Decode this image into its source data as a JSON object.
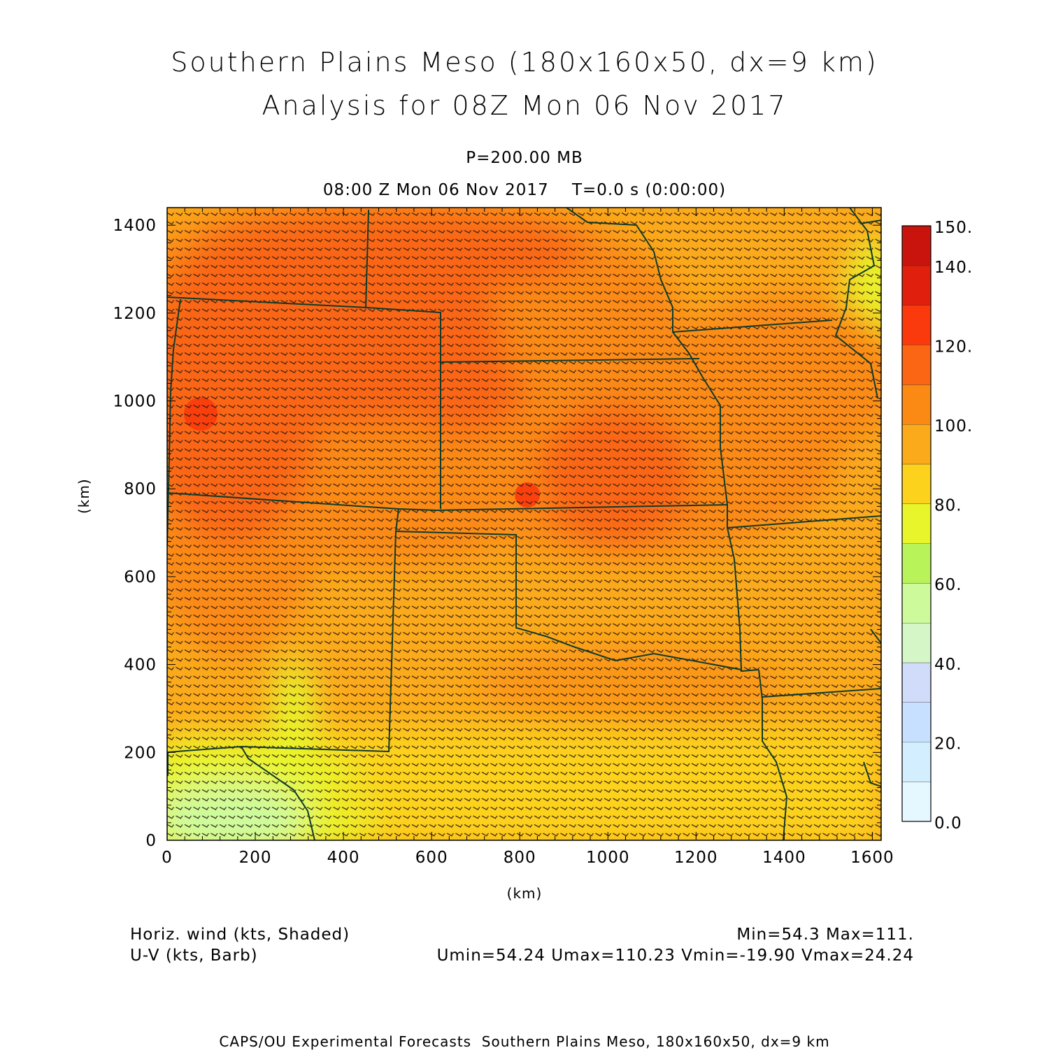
{
  "titles": {
    "line1": "Southern Plains Meso (180x160x50, dx=9 km)",
    "line2": "Analysis for 08Z Mon 06 Nov 2017",
    "level": "P=200.00 MB",
    "time": "08:00 Z Mon 06 Nov 2017    T=0.0 s (0:00:00)"
  },
  "chart_data": {
    "type": "heatmap",
    "xlabel": "(km)",
    "ylabel": "(km)",
    "xlim": [
      0,
      1620
    ],
    "ylim": [
      0,
      1440
    ],
    "x_ticks": [
      "0",
      "200",
      "400",
      "600",
      "800",
      "1000",
      "1200",
      "1400",
      "1600"
    ],
    "y_ticks": [
      "0",
      "200",
      "400",
      "600",
      "800",
      "1000",
      "1200",
      "1400"
    ],
    "colorbar": {
      "levels": [
        0,
        10,
        20,
        30,
        40,
        50,
        60,
        70,
        80,
        90,
        100,
        110,
        120,
        130,
        140,
        150
      ],
      "labels": [
        "0.0",
        "20.",
        "40.",
        "60.",
        "80.",
        "100.",
        "120.",
        "140.",
        "150."
      ],
      "colors": [
        "#e6f8ff",
        "#d2eeff",
        "#c8e0ff",
        "#d0dcfa",
        "#d5f7c8",
        "#cdfb9c",
        "#b9f35a",
        "#e8f52a",
        "#fcd21c",
        "#fbaa1c",
        "#fb8a14",
        "#fa6614",
        "#fa3a0c",
        "#e0200c",
        "#c8140c",
        "#aa0000"
      ]
    },
    "field_max_centers": [
      {
        "x": 80,
        "y": 980,
        "value": 111
      },
      {
        "x": 820,
        "y": 790,
        "value": 110
      }
    ]
  },
  "footer": {
    "left1": "Horiz. wind (kts, Shaded)",
    "left2": "U-V (kts, Barb)",
    "right1": "Min=54.3 Max=111.",
    "right2": "Umin=54.24 Umax=110.23 Vmin=-19.90 Vmax=24.24",
    "credit": "CAPS/OU Experimental Forecasts  Southern Plains Meso, 180x160x50, dx=9 km"
  }
}
